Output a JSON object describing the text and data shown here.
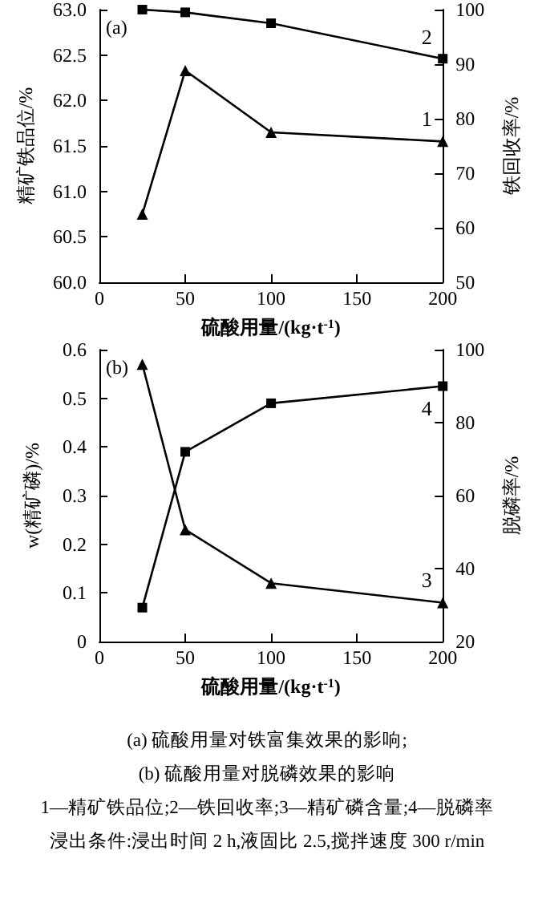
{
  "chart_data": [
    {
      "type": "line",
      "annotations": [
        "(a)"
      ],
      "xlabel": "硫酸用量/(kg·t$^{-1}$)",
      "ylabel": "精矿铁品位/%",
      "y2label": "铁回收率/%",
      "x": [
        25,
        50,
        100,
        200
      ],
      "xlim": [
        0,
        200
      ],
      "xticks": [
        0,
        50,
        100,
        150,
        200
      ],
      "ylim": [
        60,
        63
      ],
      "yticks": [
        {
          "value": 60,
          "label": "60.0"
        },
        {
          "value": 60.5,
          "label": "60.5"
        },
        {
          "value": 61,
          "label": "61.0"
        },
        {
          "value": 61.5,
          "label": "61.5"
        },
        {
          "value": 62,
          "label": "62.0"
        },
        {
          "value": 62.5,
          "label": "62.5"
        },
        {
          "value": 63,
          "label": "63.0"
        }
      ],
      "y2lim": [
        50,
        100
      ],
      "y2ticks": [
        50,
        60,
        70,
        80,
        90,
        100
      ],
      "series": [
        {
          "name": "1",
          "color": "#000000",
          "marker": "triangle",
          "values": [
            60.75,
            62.33,
            61.65,
            61.55
          ]
        },
        {
          "name": "2",
          "color": "#000000",
          "marker": "square",
          "axis": "y2",
          "values": [
            100,
            99.5,
            97.5,
            91
          ]
        }
      ]
    },
    {
      "type": "line",
      "annotations": [
        "(b)",
        "(a) 硫酸用量对铁富集效果的影响;",
        "(b) 硫酸用量对脱磷效果的影响",
        "1—精矿铁品位;2—铁回收率;3—精矿磷含量;4—脱磷率",
        "浸出条件:浸出时间 2 h,液固比 2.5,搅拌速度 300 r/min"
      ],
      "xlabel": "硫酸用量/(kg·t$^{-1}$)",
      "ylabel": "w(精矿磷)/%",
      "y2label": "脱磷率/%",
      "x": [
        25,
        50,
        100,
        200
      ],
      "xlim": [
        0,
        200
      ],
      "xticks": [
        0,
        50,
        100,
        150,
        200
      ],
      "ylim": [
        0,
        0.6
      ],
      "yticks": [
        0,
        0.1,
        0.2,
        0.3,
        0.4,
        0.5,
        0.6
      ],
      "y2lim": [
        20,
        100
      ],
      "y2ticks": [
        20,
        40,
        60,
        80,
        100
      ],
      "series": [
        {
          "name": "3",
          "color": "#000000",
          "marker": "triangle",
          "values": [
            0.57,
            0.23,
            0.12,
            0.08
          ]
        },
        {
          "name": "4",
          "color": "#000000",
          "marker": "square",
          "axis": "y2",
          "values": [
            29.3,
            72,
            85.3,
            90
          ]
        }
      ]
    }
  ]
}
